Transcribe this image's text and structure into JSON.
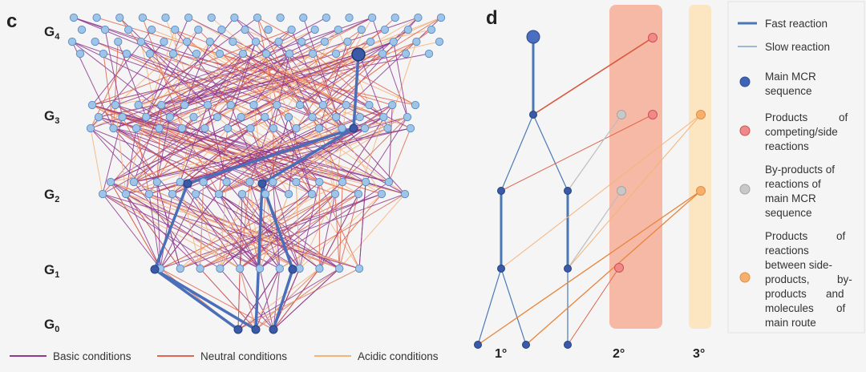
{
  "panel_c": {
    "label": "c",
    "generation_labels": [
      {
        "main": "G",
        "sub": "4"
      },
      {
        "main": "G",
        "sub": "3"
      },
      {
        "main": "G",
        "sub": "2"
      },
      {
        "main": "G",
        "sub": "1"
      },
      {
        "main": "G",
        "sub": "0"
      }
    ],
    "legend": [
      {
        "label": "Basic conditions",
        "color": "#8e3a8e"
      },
      {
        "label": "Neutral conditions",
        "color": "#e0664f"
      },
      {
        "label": "Acidic conditions",
        "color": "#f5b37a"
      }
    ]
  },
  "panel_d": {
    "label": "d",
    "degree_labels": [
      "1°",
      "2°",
      "3°"
    ],
    "legend": [
      {
        "label": "Fast reaction",
        "kind": "thick-line",
        "color": "#4a78b5"
      },
      {
        "label": "Slow reaction",
        "kind": "thin-line",
        "color": "#4a78b5"
      },
      {
        "label": "Main MCR sequence",
        "kind": "circle",
        "color": "#3f63b5"
      },
      {
        "label": "Products of competing/side reactions",
        "kind": "circle",
        "color": "#f08a8a"
      },
      {
        "label": "By-products of reactions of main MCR sequence",
        "kind": "circle",
        "color": "#c8c8c8"
      },
      {
        "label": "Products of reactions between side-products, by-products and molecules of main route",
        "kind": "circle",
        "color": "#f5b06e"
      }
    ]
  },
  "colors": {
    "node_fill": "#9ec5e8",
    "node_stroke": "#5a8bc4",
    "main_route": "#4a6fb8",
    "background": "#f5f5f5"
  }
}
